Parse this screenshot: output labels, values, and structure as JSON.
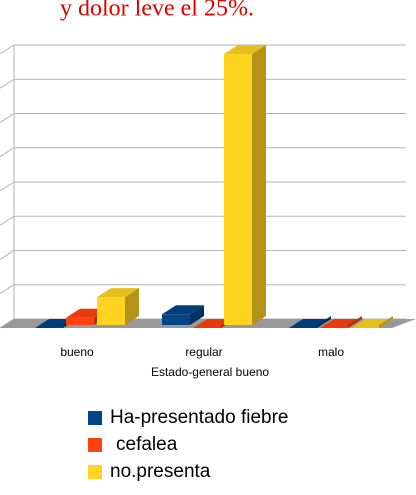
{
  "chart_data": {
    "type": "bar3d",
    "title": "y dolor leve el 25%.",
    "x_label": "Estado-general bueno",
    "categories": [
      "bueno",
      "regular",
      "malo"
    ],
    "series": [
      {
        "name": "Ha-presentado fiebre",
        "color": "#004586",
        "values": [
          0,
          4,
          0
        ]
      },
      {
        "name": "cefalea",
        "color": "#ff420e",
        "values": [
          3,
          0,
          0
        ]
      },
      {
        "name": "no.presenta",
        "color": "#ffd320",
        "values": [
          9,
          80,
          0
        ]
      }
    ],
    "ylim": [
      0,
      80
    ],
    "yticks": [
      0,
      10,
      20,
      30,
      40,
      50,
      60,
      70,
      80
    ],
    "grid": true
  }
}
